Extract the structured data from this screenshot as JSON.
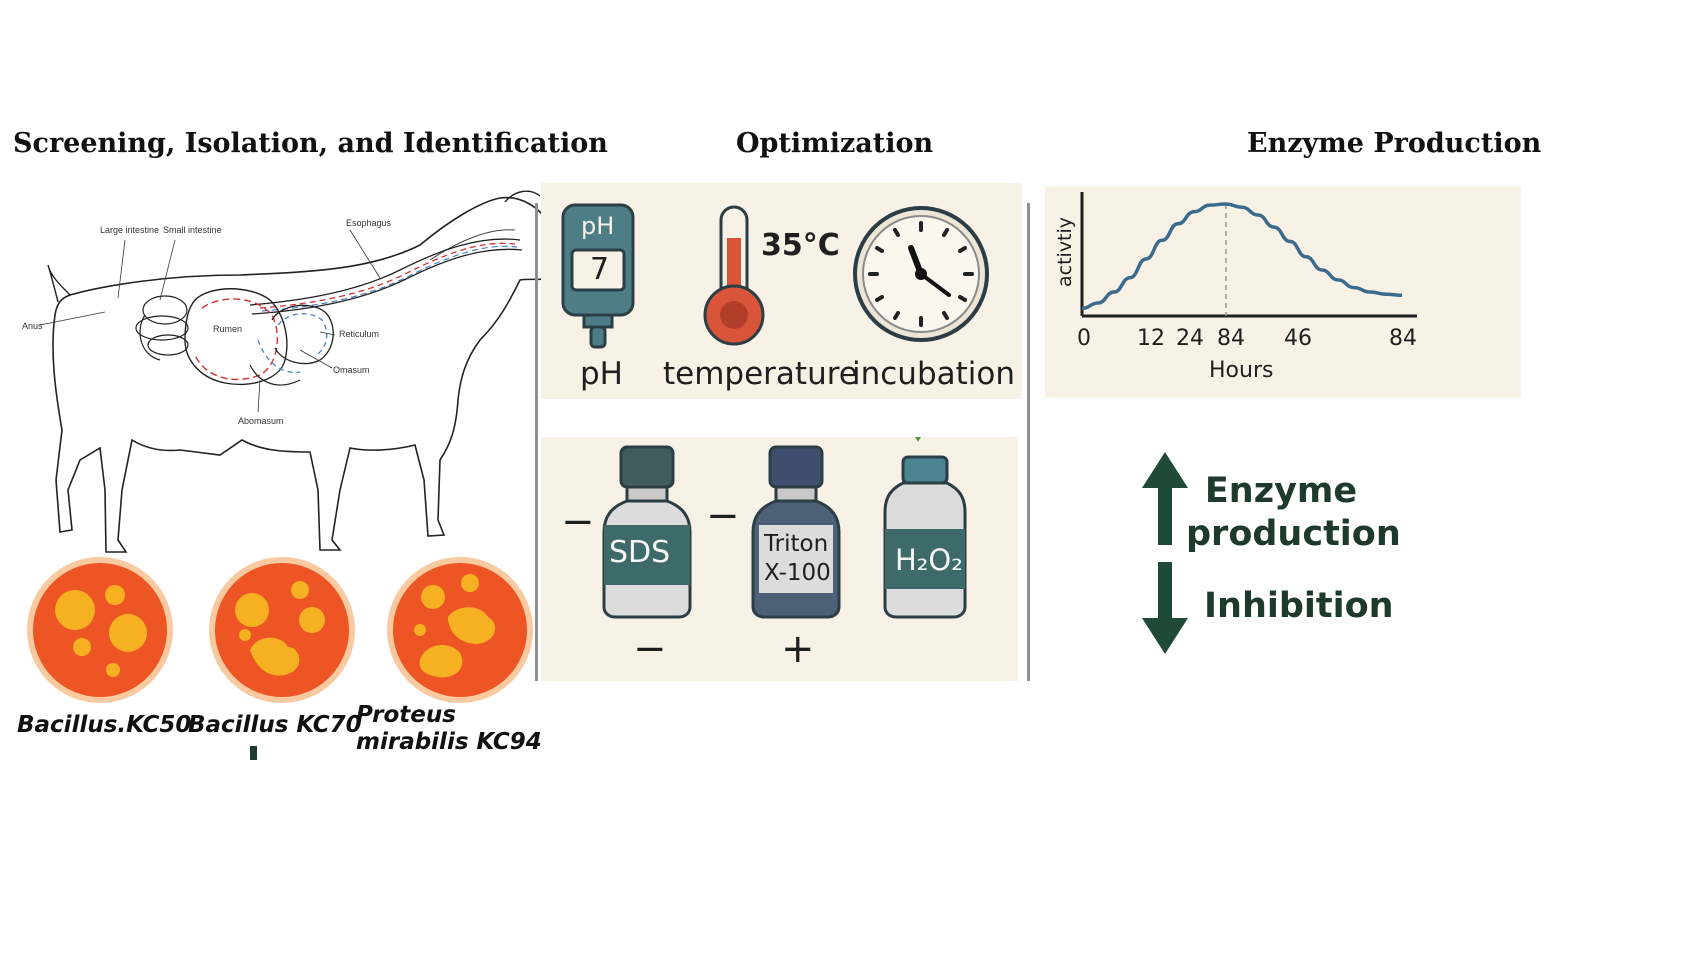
{
  "sections": {
    "screening_title": "Screening, Isolation, and Identification",
    "optimization_title": "Optimization",
    "production_title": "Enzyme Production"
  },
  "goat": {
    "labels": {
      "large_intestine": "Large intestine",
      "small_intestine": "Small intestine",
      "esophagus": "Esophagus",
      "anus": "Anus",
      "rumen": "Rumen",
      "reticulum": "Reticulum",
      "omasum": "Omasum",
      "abomasum": "Abomasum"
    },
    "flow_colors": {
      "forward": "#d63030",
      "return": "#4a7fc4"
    }
  },
  "isolates": [
    {
      "name_line1": "Bacillus.KC50",
      "name_line2": ""
    },
    {
      "name_line1": "Bacillus  KC70",
      "name_line2": ""
    },
    {
      "name_line1": "Proteus",
      "name_line2": "mirabilis KC94"
    }
  ],
  "optimization": {
    "ph_meter_text": "pH",
    "ph_value": "7",
    "temperature_value": "35°C",
    "labels": {
      "ph": "pH",
      "temperature": "temperature",
      "incubation": "incubation"
    },
    "reagents": [
      {
        "name": "SDS",
        "side_sign": "−",
        "bottom_sign": "−"
      },
      {
        "name_line1": "Triton",
        "name_line2": "X-100",
        "side_sign": "−",
        "bottom_sign": "+"
      },
      {
        "name": "H₂O₂"
      }
    ]
  },
  "chart_data": {
    "type": "line",
    "ylabel": "activtiy",
    "xlabel": "Hours",
    "x_tick_labels": [
      "0",
      "12",
      "24",
      "84",
      "46",
      "84"
    ],
    "series": [
      {
        "x": [
          0,
          0.05,
          0.1,
          0.15,
          0.2,
          0.25,
          0.3,
          0.35,
          0.4,
          0.45,
          0.5,
          0.55,
          0.6,
          0.65,
          0.7,
          0.75,
          0.8,
          0.85,
          0.9,
          0.95,
          1.0
        ],
        "y": [
          0.05,
          0.1,
          0.2,
          0.33,
          0.5,
          0.67,
          0.82,
          0.93,
          0.99,
          1.0,
          0.97,
          0.9,
          0.79,
          0.66,
          0.52,
          0.4,
          0.31,
          0.24,
          0.2,
          0.18,
          0.17
        ]
      }
    ],
    "peak_marker": "dashed vertical line at peak",
    "line_color": "#3a6b8c"
  },
  "regulation": {
    "up_label": "Enzyme production",
    "down_label": "Inhibition",
    "arrow_color": "#1f4a38"
  }
}
